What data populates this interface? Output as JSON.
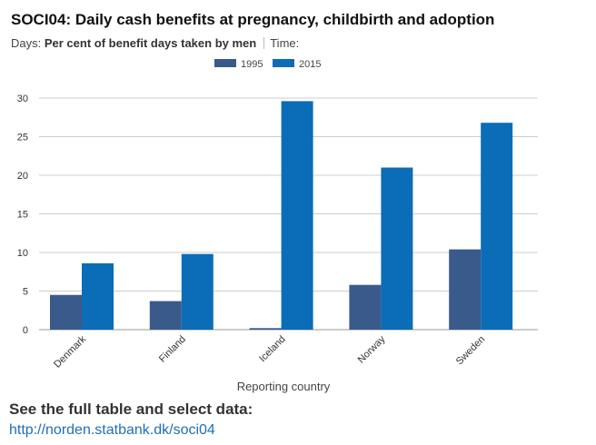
{
  "header": {
    "title": "SOCI04: Daily cash benefits at pregnancy, childbirth and adoption",
    "days_label": "Days:",
    "days_value": "Per cent of benefit days taken by men",
    "time_label": "Time:"
  },
  "colors": {
    "series_1995": "#3a5a8c",
    "series_2015": "#0b6cb8",
    "grid": "#cccccc",
    "axis_text": "#333333"
  },
  "chart_data": {
    "type": "bar",
    "title": "SOCI04: Daily cash benefits at pregnancy, childbirth and adoption",
    "xlabel": "Reporting country",
    "ylabel": "",
    "categories": [
      "Denmark",
      "Finland",
      "Iceland",
      "Norway",
      "Sweden"
    ],
    "series": [
      {
        "name": "1995",
        "values": [
          4.5,
          3.7,
          0.2,
          5.8,
          10.4
        ]
      },
      {
        "name": "2015",
        "values": [
          8.6,
          9.8,
          29.6,
          21.0,
          26.8
        ]
      }
    ],
    "ylim": [
      0,
      30
    ],
    "yticks": [
      "0",
      "5",
      "10",
      "15",
      "20",
      "25",
      "30"
    ],
    "grid": true,
    "legend_position": "top-center"
  },
  "footer": {
    "label": "See the full table and select data:",
    "link": "http://norden.statbank.dk/soci04"
  }
}
